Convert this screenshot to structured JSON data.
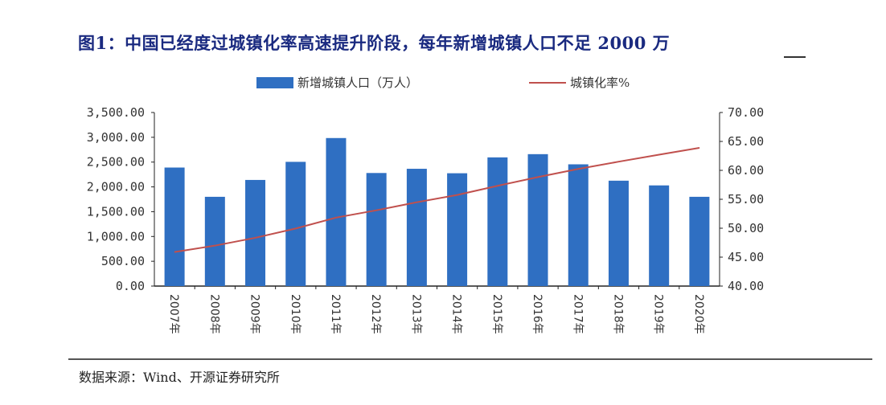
{
  "title": "图1：中国已经度过城镇化率高速提升阶段，每年新增城镇人口不足 2000 万",
  "source": "数据来源：Wind、开源证券研究所",
  "chart_data": {
    "type": "bar+line",
    "title": "图1：中国已经度过城镇化率高速提升阶段，每年新增城镇人口不足 2000 万",
    "legend_position": "top",
    "grid": false,
    "categories": [
      "2007年",
      "2008年",
      "2009年",
      "2010年",
      "2011年",
      "2012年",
      "2013年",
      "2014年",
      "2015年",
      "2016年",
      "2017年",
      "2018年",
      "2019年",
      "2020年"
    ],
    "series": [
      {
        "name": "新增城镇人口（万人）",
        "type": "bar",
        "axis": "left",
        "color": "#2f6fc2",
        "values": [
          2390,
          1800,
          2140,
          2505,
          2985,
          2280,
          2365,
          2275,
          2595,
          2660,
          2455,
          2125,
          2030,
          1800
        ]
      },
      {
        "name": "城镇化率%",
        "type": "line",
        "axis": "right",
        "color": "#c0504d",
        "values": [
          45.89,
          46.99,
          48.34,
          49.95,
          51.83,
          53.1,
          54.49,
          55.75,
          57.33,
          58.84,
          60.24,
          61.5,
          62.71,
          63.89
        ]
      }
    ],
    "y_left": {
      "range": [
        0,
        3500
      ],
      "ticks": [
        "0.00",
        "500.00",
        "1,000.00",
        "1,500.00",
        "2,000.00",
        "2,500.00",
        "3,000.00",
        "3,500.00"
      ]
    },
    "y_right": {
      "range": [
        40,
        70
      ],
      "ticks": [
        "40.00",
        "45.00",
        "50.00",
        "55.00",
        "60.00",
        "65.00",
        "70.00"
      ]
    }
  }
}
